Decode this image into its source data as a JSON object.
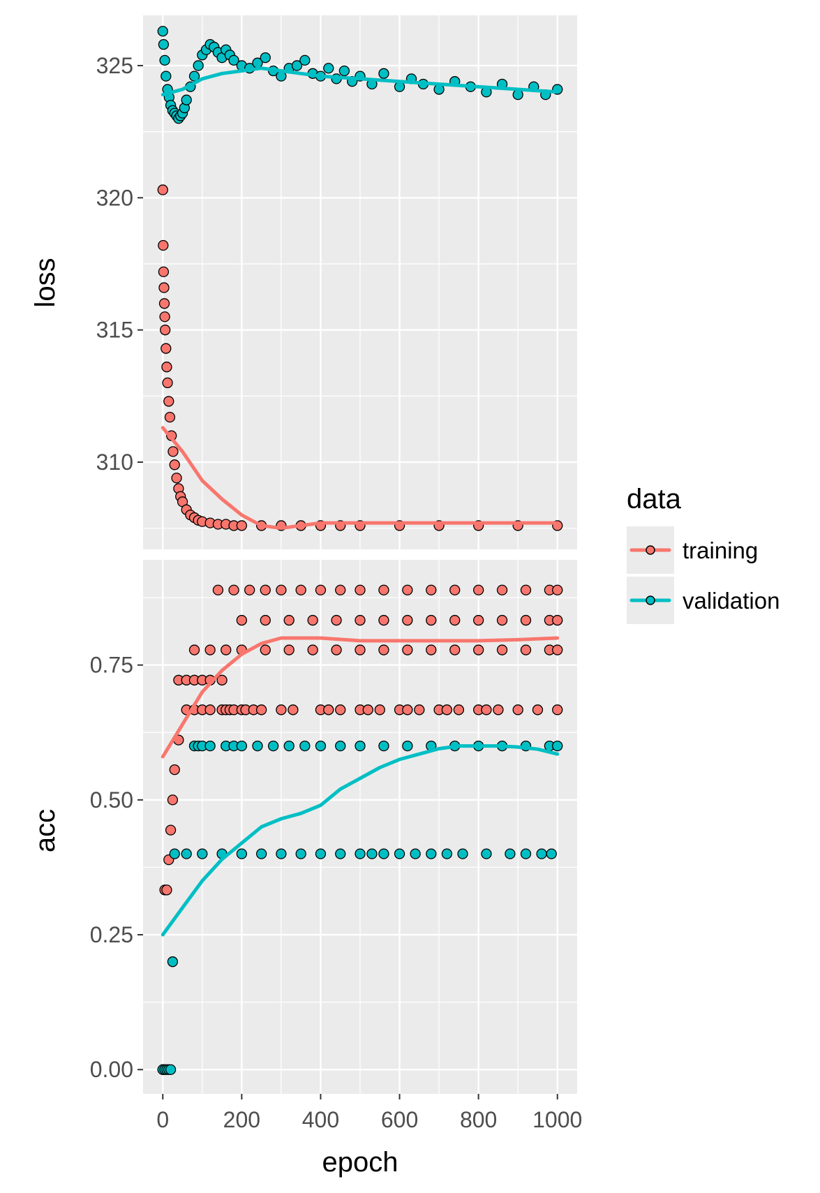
{
  "chart_data": {
    "type": "scatter",
    "title": "",
    "xlabel": "epoch",
    "x_ticks": [
      0,
      200,
      400,
      600,
      800,
      1000
    ],
    "xlim": [
      -50,
      1050
    ],
    "grid": true,
    "legend": {
      "title": "data",
      "position": "right",
      "entries": [
        {
          "name": "training",
          "color": "#F8766D"
        },
        {
          "name": "validation",
          "color": "#00BFC4"
        }
      ]
    },
    "panels": [
      {
        "ylabel": "loss",
        "ylim": [
          306.7,
          326.9
        ],
        "y_ticks": [
          310,
          315,
          320,
          325
        ],
        "series": [
          {
            "name": "training",
            "color": "#F8766D",
            "points": {
              "x": [
                0,
                1,
                2,
                3,
                4,
                5,
                6,
                8,
                10,
                12,
                15,
                18,
                22,
                26,
                30,
                35,
                40,
                45,
                50,
                60,
                70,
                80,
                90,
                100,
                120,
                140,
                160,
                180,
                200,
                250,
                300,
                350,
                400,
                450,
                500,
                600,
                700,
                800,
                900,
                1000
              ],
              "y": [
                320.3,
                318.2,
                317.2,
                316.6,
                316.0,
                315.5,
                315.0,
                314.3,
                313.6,
                313.0,
                312.3,
                311.7,
                311.0,
                310.4,
                309.9,
                309.4,
                309.0,
                308.7,
                308.5,
                308.2,
                308.0,
                307.9,
                307.8,
                307.75,
                307.7,
                307.65,
                307.65,
                307.6,
                307.6,
                307.6,
                307.6,
                307.6,
                307.6,
                307.6,
                307.6,
                307.6,
                307.6,
                307.6,
                307.6,
                307.6
              ]
            },
            "smooth": {
              "x": [
                0,
                50,
                100,
                150,
                200,
                250,
                300,
                350,
                400,
                500,
                600,
                700,
                800,
                900,
                1000
              ],
              "y": [
                311.3,
                310.4,
                309.3,
                308.6,
                308.0,
                307.6,
                307.5,
                307.6,
                307.7,
                307.7,
                307.7,
                307.7,
                307.7,
                307.7,
                307.7
              ]
            }
          },
          {
            "name": "validation",
            "color": "#00BFC4",
            "points": {
              "x": [
                0,
                2,
                5,
                8,
                12,
                16,
                20,
                25,
                30,
                35,
                40,
                45,
                50,
                55,
                60,
                70,
                80,
                90,
                100,
                110,
                120,
                130,
                140,
                150,
                160,
                170,
                180,
                200,
                220,
                240,
                260,
                280,
                300,
                320,
                340,
                360,
                380,
                400,
                420,
                440,
                460,
                480,
                500,
                530,
                560,
                600,
                630,
                660,
                700,
                740,
                780,
                820,
                860,
                900,
                940,
                970,
                1000
              ],
              "y": [
                326.3,
                325.8,
                325.2,
                324.6,
                324.1,
                323.8,
                323.5,
                323.3,
                323.2,
                323.1,
                323.0,
                323.1,
                323.2,
                323.4,
                323.7,
                324.2,
                324.6,
                325.0,
                325.4,
                325.6,
                325.8,
                325.7,
                325.5,
                325.3,
                325.6,
                325.4,
                325.2,
                325.0,
                324.9,
                325.1,
                325.3,
                324.8,
                324.6,
                324.9,
                325.0,
                325.2,
                324.7,
                324.6,
                324.9,
                324.5,
                324.8,
                324.4,
                324.6,
                324.3,
                324.7,
                324.2,
                324.5,
                324.3,
                324.1,
                324.4,
                324.2,
                324.0,
                324.3,
                323.9,
                324.2,
                323.9,
                324.1
              ]
            },
            "smooth": {
              "x": [
                0,
                50,
                100,
                150,
                200,
                250,
                300,
                350,
                400,
                500,
                600,
                700,
                800,
                900,
                1000
              ],
              "y": [
                323.9,
                324.1,
                324.5,
                324.7,
                324.8,
                324.9,
                324.8,
                324.7,
                324.6,
                324.5,
                324.4,
                324.3,
                324.2,
                324.1,
                324.0
              ]
            }
          }
        ]
      },
      {
        "ylabel": "acc",
        "ylim": [
          -0.045,
          0.945
        ],
        "y_ticks": [
          0.0,
          0.25,
          0.5,
          0.75
        ],
        "tick_labels": [
          "0.00",
          "0.25",
          "0.50",
          "0.75"
        ],
        "series": [
          {
            "name": "training",
            "color": "#F8766D",
            "points": {
              "x": [
                0,
                5,
                10,
                15,
                20,
                25,
                30,
                40,
                60,
                80,
                100,
                120,
                150,
                160,
                170,
                180,
                200,
                210,
                230,
                250,
                300,
                330,
                400,
                420,
                450,
                500,
                520,
                550,
                600,
                620,
                650,
                700,
                720,
                750,
                800,
                820,
                850,
                900,
                950,
                1000,
                140,
                180,
                220,
                260,
                300,
                350,
                400,
                450,
                500,
                560,
                620,
                680,
                740,
                800,
                860,
                920,
                980,
                1000,
                200,
                260,
                320,
                380,
                440,
                500,
                560,
                620,
                680,
                740,
                800,
                860,
                920,
                980,
                1000,
                80,
                120,
                160,
                200,
                260,
                320,
                380,
                440,
                500,
                560,
                620,
                680,
                740,
                800,
                860,
                920,
                980,
                1000,
                40,
                60,
                80,
                100,
                120,
                150
              ],
              "y": [
                0.0,
                0.333,
                0.333,
                0.389,
                0.444,
                0.5,
                0.556,
                0.611,
                0.667,
                0.667,
                0.667,
                0.667,
                0.667,
                0.667,
                0.667,
                0.667,
                0.667,
                0.667,
                0.667,
                0.667,
                0.667,
                0.667,
                0.667,
                0.667,
                0.667,
                0.667,
                0.667,
                0.667,
                0.667,
                0.667,
                0.667,
                0.667,
                0.667,
                0.667,
                0.667,
                0.667,
                0.667,
                0.667,
                0.667,
                0.667,
                0.889,
                0.889,
                0.889,
                0.889,
                0.889,
                0.889,
                0.889,
                0.889,
                0.889,
                0.889,
                0.889,
                0.889,
                0.889,
                0.889,
                0.889,
                0.889,
                0.889,
                0.889,
                0.833,
                0.833,
                0.833,
                0.833,
                0.833,
                0.833,
                0.833,
                0.833,
                0.833,
                0.833,
                0.833,
                0.833,
                0.833,
                0.833,
                0.833,
                0.778,
                0.778,
                0.778,
                0.778,
                0.778,
                0.778,
                0.778,
                0.778,
                0.778,
                0.778,
                0.778,
                0.778,
                0.778,
                0.778,
                0.778,
                0.778,
                0.778,
                0.778,
                0.722,
                0.722,
                0.722,
                0.722,
                0.722,
                0.722
              ]
            },
            "smooth": {
              "x": [
                0,
                50,
                100,
                150,
                200,
                250,
                300,
                350,
                400,
                500,
                600,
                700,
                800,
                900,
                1000
              ],
              "y": [
                0.58,
                0.64,
                0.7,
                0.74,
                0.77,
                0.79,
                0.8,
                0.8,
                0.8,
                0.795,
                0.795,
                0.795,
                0.795,
                0.797,
                0.8
              ]
            }
          },
          {
            "name": "validation",
            "color": "#00BFC4",
            "points": {
              "x": [
                0,
                5,
                10,
                15,
                20,
                25,
                80,
                90,
                100,
                120,
                160,
                180,
                200,
                240,
                280,
                320,
                360,
                400,
                450,
                500,
                560,
                620,
                680,
                740,
                800,
                860,
                920,
                980,
                1000,
                30,
                60,
                100,
                150,
                200,
                250,
                300,
                350,
                400,
                450,
                500,
                530,
                560,
                600,
                640,
                680,
                720,
                760,
                820,
                880,
                920,
                960,
                985
              ],
              "y": [
                0.0,
                0.0,
                0.0,
                0.0,
                0.0,
                0.2,
                0.6,
                0.6,
                0.6,
                0.6,
                0.6,
                0.6,
                0.6,
                0.6,
                0.6,
                0.6,
                0.6,
                0.6,
                0.6,
                0.6,
                0.6,
                0.6,
                0.6,
                0.6,
                0.6,
                0.6,
                0.6,
                0.6,
                0.6,
                0.4,
                0.4,
                0.4,
                0.4,
                0.4,
                0.4,
                0.4,
                0.4,
                0.4,
                0.4,
                0.4,
                0.4,
                0.4,
                0.4,
                0.4,
                0.4,
                0.4,
                0.4,
                0.4,
                0.4,
                0.4,
                0.4,
                0.4
              ]
            },
            "smooth": {
              "x": [
                0,
                50,
                100,
                150,
                200,
                250,
                300,
                350,
                400,
                450,
                500,
                550,
                600,
                650,
                700,
                750,
                800,
                850,
                900,
                950,
                1000
              ],
              "y": [
                0.25,
                0.3,
                0.35,
                0.39,
                0.42,
                0.45,
                0.465,
                0.475,
                0.49,
                0.52,
                0.54,
                0.56,
                0.575,
                0.585,
                0.595,
                0.6,
                0.6,
                0.6,
                0.598,
                0.594,
                0.585
              ]
            }
          }
        ]
      }
    ]
  }
}
